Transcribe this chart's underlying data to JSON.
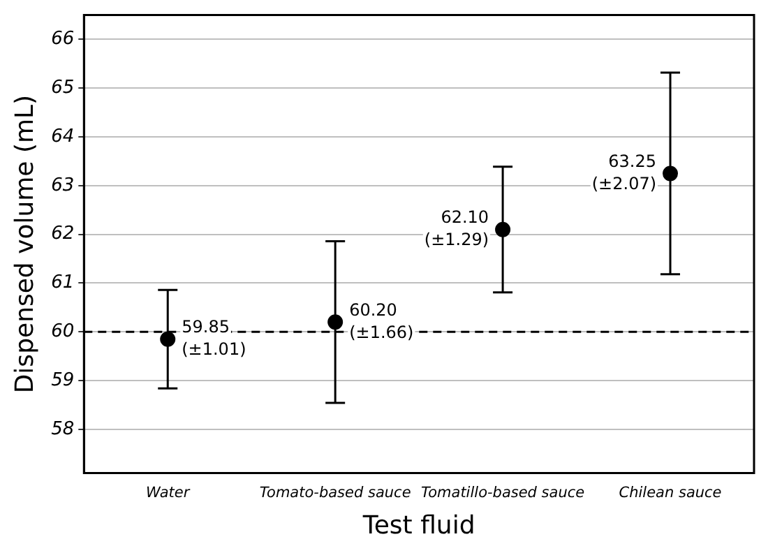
{
  "chart_data": {
    "type": "scatter",
    "xlabel": "Test fluid",
    "ylabel": "Dispensed volume (mL)",
    "categories": [
      "Water",
      "Tomato-based sauce",
      "Tomatillo-based sauce",
      "Chilean sauce"
    ],
    "series": [
      {
        "color": "#000000",
        "values": [
          59.85,
          60.2,
          62.1,
          63.25
        ],
        "errors": [
          1.01,
          1.66,
          1.29,
          2.07
        ],
        "value_labels": [
          "59.85\n(±1.01)",
          "60.20\n(±1.66)",
          "62.10\n(±1.29)",
          "63.25\n(±2.07)"
        ]
      }
    ],
    "ylim": [
      57.1,
      66.5
    ],
    "yticks": [
      58,
      59,
      60,
      61,
      62,
      63,
      64,
      65,
      66
    ],
    "ref_lines": [
      {
        "axis": "y",
        "value": 60,
        "line_style": "dashed",
        "color": "#000000"
      }
    ],
    "grid": "y",
    "marker": "circle",
    "legend": false
  }
}
